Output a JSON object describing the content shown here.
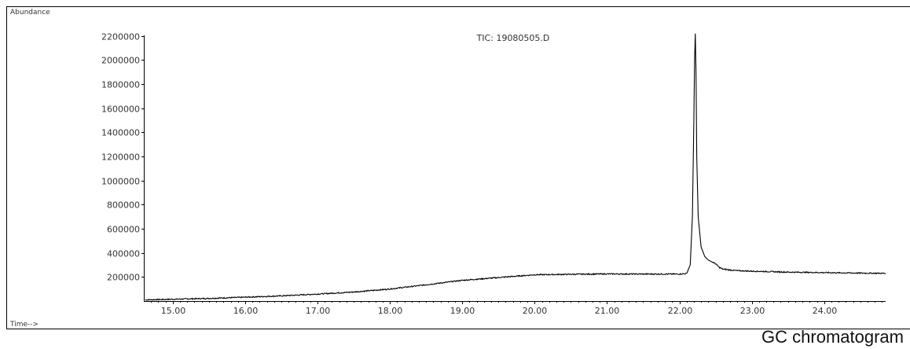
{
  "window_title": "",
  "caption": "GC chromatogram",
  "colors": {
    "trace": "#000000",
    "frame": "#000000",
    "text": "#333333"
  },
  "chart_data": {
    "type": "line",
    "title": "TIC: 19080505.D",
    "xlabel": "Time-->",
    "ylabel": "Abundance",
    "xlim": [
      14.6,
      24.85
    ],
    "ylim": [
      0,
      2250000
    ],
    "x_ticks": [
      15.0,
      16.0,
      17.0,
      18.0,
      19.0,
      20.0,
      21.0,
      22.0,
      23.0,
      24.0
    ],
    "x_tick_labels": [
      "15.00",
      "16.00",
      "17.00",
      "18.00",
      "19.00",
      "20.00",
      "21.00",
      "22.00",
      "23.00",
      "24.00"
    ],
    "y_ticks": [
      200000,
      400000,
      600000,
      800000,
      1000000,
      1200000,
      1400000,
      1600000,
      1800000,
      2000000,
      2200000
    ],
    "y_tick_labels": [
      "200000",
      "400000",
      "600000",
      "800000",
      "1000000",
      "1200000",
      "1400000",
      "1600000",
      "1800000",
      "2000000",
      "2200000"
    ],
    "grid": false,
    "series": [
      {
        "x": [
          14.62,
          15.0,
          15.5,
          16.0,
          16.5,
          17.0,
          17.5,
          18.0,
          18.5,
          19.0,
          19.5,
          20.0,
          20.5,
          21.0,
          21.5,
          22.0,
          22.1,
          22.15,
          22.18,
          22.2,
          22.21,
          22.22,
          22.23,
          22.24,
          22.26,
          22.3,
          22.35,
          22.4,
          22.45,
          22.5,
          22.55,
          22.6,
          22.7,
          22.8,
          23.0,
          23.5,
          24.0,
          24.5,
          24.85
        ],
        "y": [
          10000,
          15000,
          22000,
          32000,
          43000,
          58000,
          75000,
          100000,
          135000,
          172000,
          195000,
          218000,
          222000,
          225000,
          224000,
          224000,
          228000,
          300000,
          700000,
          1500000,
          2000000,
          2220000,
          1900000,
          1200000,
          700000,
          450000,
          370000,
          340000,
          325000,
          310000,
          280000,
          265000,
          258000,
          252000,
          248000,
          240000,
          236000,
          232000,
          230000
        ]
      }
    ]
  }
}
